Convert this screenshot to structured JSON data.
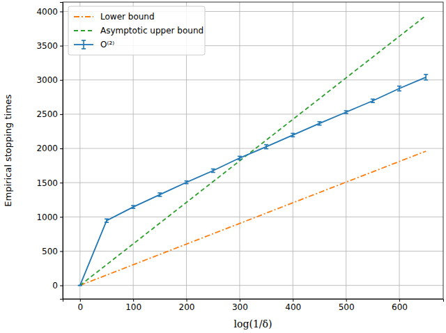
{
  "chart_data": {
    "type": "line",
    "x_label": "log(1/δ)",
    "y_label": "Empirical stopping times",
    "xlim": [
      -32.5,
      682.5
    ],
    "ylim": [
      -197,
      4137
    ],
    "xticks": [
      0,
      100,
      200,
      300,
      400,
      500,
      600
    ],
    "yticks": [
      0,
      500,
      1000,
      1500,
      2000,
      2500,
      3000,
      3500,
      4000
    ],
    "grid": true,
    "legend": "upper left",
    "series": [
      {
        "name": "Lower bound",
        "color": "#ff7f0e",
        "line_style": "dashdot",
        "x": [
          0,
          650
        ],
        "values": [
          0,
          1960
        ]
      },
      {
        "name": "Asymptotic upper bound",
        "color": "#2ca02c",
        "line_style": "dashed",
        "x": [
          0,
          650
        ],
        "values": [
          0,
          3940
        ]
      },
      {
        "name": "O⁽²⁾",
        "color": "#1f77b4",
        "line_style": "solid",
        "marker": "errorbar",
        "x": [
          0,
          50,
          100,
          150,
          200,
          250,
          300,
          350,
          400,
          450,
          500,
          550,
          600,
          650
        ],
        "values": [
          0,
          945,
          1145,
          1325,
          1505,
          1675,
          1860,
          2025,
          2195,
          2365,
          2530,
          2695,
          2875,
          3040
        ],
        "errors": [
          0,
          25,
          20,
          25,
          20,
          25,
          25,
          30,
          25,
          25,
          20,
          25,
          35,
          40
        ]
      }
    ]
  }
}
